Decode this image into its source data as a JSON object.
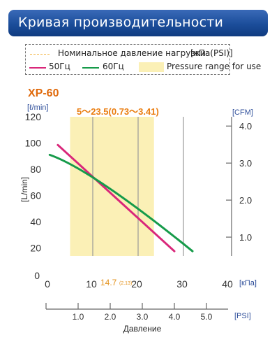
{
  "header": {
    "title": "Кривая производительности"
  },
  "legend": {
    "rated_pressure": "Номинальное давление нагрузки",
    "rated_pressure_unit": "[кПа(PSI)]",
    "hz50": "50Гц",
    "hz60": "60Гц",
    "range_label": "Pressure range for use",
    "colors": {
      "hz50": "#d9277a",
      "hz60": "#169b4a",
      "range": "#fbf0b6",
      "rated_line": "#f2b23c"
    }
  },
  "chart_data": {
    "type": "line",
    "model": "XP-60",
    "range_annotation": "5～23.5(0.73～3.41)",
    "y_unit_left": "[ℓ/min]",
    "ylabel": "[L/min]",
    "y_unit_right": "[CFM]",
    "x_unit_kpa": "[кПа]",
    "x_unit_psi": "[PSI]",
    "xlabel": "Давление",
    "rated_value": "14.7",
    "rated_value_psi": "(2.13)",
    "xlim": [
      0,
      40
    ],
    "ylim": [
      0,
      120
    ],
    "right_lim": [
      0,
      4.25
    ],
    "x_ticks": [
      "0",
      "10",
      "20",
      "30",
      "40"
    ],
    "y_ticks": [
      "20",
      "40",
      "60",
      "80",
      "100",
      "120"
    ],
    "right_ticks": [
      "1.0",
      "2.0",
      "3.0",
      "4.0"
    ],
    "psi_ticks": [
      "1.0",
      "2.0",
      "3.0",
      "4.0",
      "5.0"
    ],
    "usage_range_kpa": [
      5,
      23.5
    ],
    "series": [
      {
        "name": "50Гц",
        "color": "#d9277a",
        "x": [
          2.3,
          28
        ],
        "y": [
          98.5,
          17.5
        ],
        "bend": [
          11,
          71
        ]
      },
      {
        "name": "60Гц",
        "color": "#169b4a",
        "x": [
          0.5,
          32
        ],
        "y": [
          91,
          17.5
        ],
        "bend": [
          13,
          67
        ]
      }
    ]
  }
}
